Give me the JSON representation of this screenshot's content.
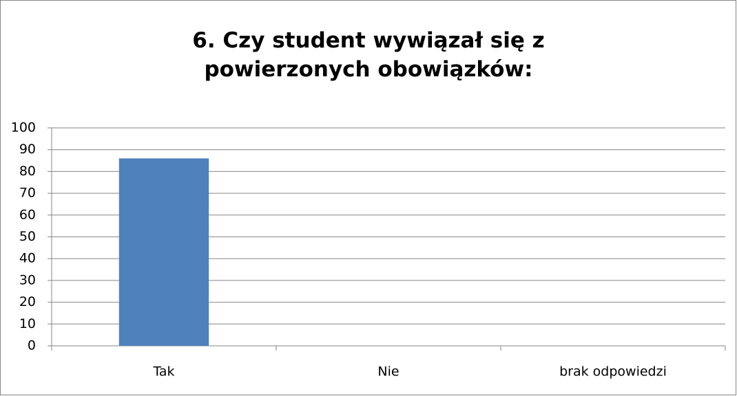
{
  "chart_data": {
    "type": "bar",
    "title": "6. Czy student wywiązał się z powierzonych obowiązków:",
    "categories": [
      "Tak",
      "Nie",
      "brak odpowiedzi"
    ],
    "values": [
      86,
      0,
      0
    ],
    "color": "#4f81bd",
    "ylim": [
      0,
      100
    ],
    "yticks": [
      0,
      10,
      20,
      30,
      40,
      50,
      60,
      70,
      80,
      90,
      100
    ],
    "grid": true
  }
}
